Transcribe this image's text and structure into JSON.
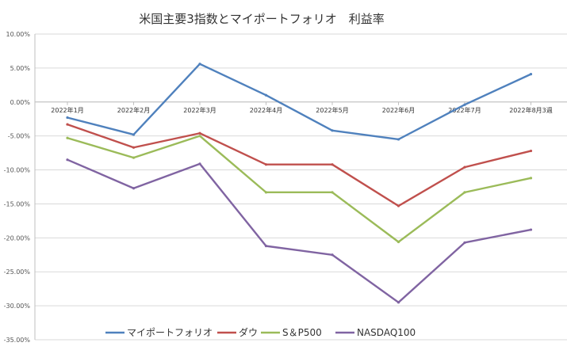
{
  "chart_data": {
    "type": "line",
    "title": "米国主要3指数とマイポートフォリオ　利益率",
    "xlabel": "",
    "ylabel": "",
    "categories": [
      "2022年1月",
      "2022年2月",
      "2022年3月",
      "2022年4月",
      "2022年5月",
      "2022年6月",
      "2022年7月",
      "2022年8月3週"
    ],
    "ylim": [
      -35,
      10
    ],
    "yticks": [
      10,
      5,
      0,
      -5,
      -10,
      -15,
      -20,
      -25,
      -30,
      -35
    ],
    "ytick_labels": [
      "10.00%",
      "5.00%",
      "0.00%",
      "-5.00%",
      "-10.00%",
      "-15.00%",
      "-20.00%",
      "-25.00%",
      "-30.00%",
      "-35.00%"
    ],
    "grid": "horizontal",
    "legend": "bottom",
    "series": [
      {
        "name": "マイポートフォリオ",
        "color": "#4F81BD",
        "values": [
          -2.3,
          -4.8,
          5.6,
          1.0,
          -4.2,
          -5.5,
          -0.4,
          4.1
        ]
      },
      {
        "name": "ダウ",
        "color": "#C0504D",
        "values": [
          -3.3,
          -6.7,
          -4.6,
          -9.2,
          -9.2,
          -15.3,
          -9.6,
          -7.2
        ]
      },
      {
        "name": "S＆P500",
        "color": "#9BBB59",
        "values": [
          -5.3,
          -8.2,
          -5.0,
          -13.3,
          -13.3,
          -20.6,
          -13.3,
          -11.2
        ]
      },
      {
        "name": "NASDAQ100",
        "color": "#8064A2",
        "values": [
          -8.5,
          -12.7,
          -9.1,
          -21.2,
          -22.5,
          -29.5,
          -20.7,
          -18.8
        ]
      }
    ]
  }
}
